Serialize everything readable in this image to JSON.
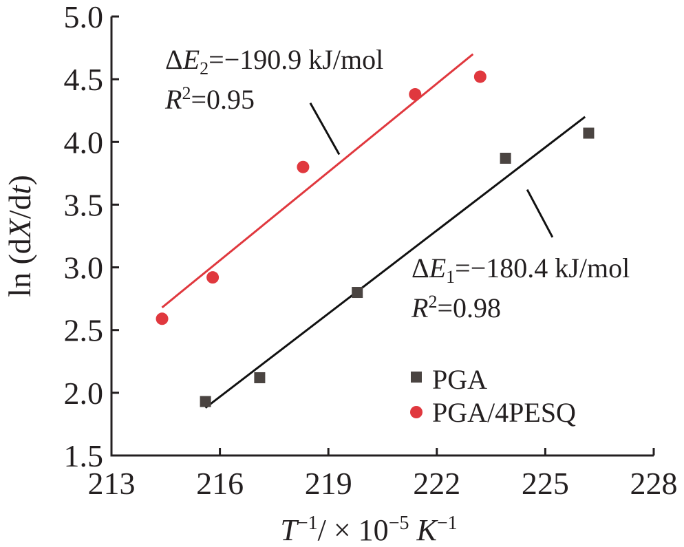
{
  "chart_data": {
    "type": "scatter",
    "xlabel_parts": [
      {
        "text": "T",
        "italic": true
      },
      {
        "text": "−1",
        "sup": true
      },
      {
        "text": "/ × 10"
      },
      {
        "text": "−5",
        "sup": true
      },
      {
        "text": " "
      },
      {
        "text": "K",
        "italic": true
      },
      {
        "text": "−1",
        "sup": true
      }
    ],
    "ylabel_parts": [
      {
        "text": "ln (d"
      },
      {
        "text": "X",
        "italic": true
      },
      {
        "text": "/d"
      },
      {
        "text": "t",
        "italic": true
      },
      {
        "text": ")"
      }
    ],
    "xlim": [
      213,
      228
    ],
    "ylim": [
      1.5,
      5.0
    ],
    "xticks": [
      "213",
      "216",
      "219",
      "222",
      "225",
      "228"
    ],
    "yticks": [
      "1.5",
      "2.0",
      "2.5",
      "3.0",
      "3.5",
      "4.0",
      "4.5",
      "5.0"
    ],
    "grid": false,
    "legend_position": "bottom-right",
    "series": [
      {
        "name": "PGA",
        "marker": "square",
        "color": "#4a4441",
        "line_color": "#111111",
        "x": [
          215.6,
          217.1,
          219.8,
          223.9,
          226.2
        ],
        "y": [
          1.93,
          2.12,
          2.8,
          3.87,
          4.07
        ],
        "fit": {
          "x": [
            215.6,
            226.1
          ],
          "y": [
            1.88,
            4.2
          ]
        }
      },
      {
        "name": "PGA/4PESQ",
        "marker": "circle",
        "color": "#e0383e",
        "line_color": "#e0383e",
        "x": [
          214.4,
          215.8,
          218.3,
          221.4,
          223.2
        ],
        "y": [
          2.59,
          2.92,
          3.8,
          4.38,
          4.52
        ],
        "fit": {
          "x": [
            214.4,
            223.0
          ],
          "y": [
            2.68,
            4.7
          ]
        }
      }
    ],
    "annotations": [
      {
        "line1": {
          "delta": "Δ",
          "var": "E",
          "sub": "2",
          "rest": "=−190.9 kJ/mol"
        },
        "line2": {
          "var": "R",
          "sup": "2",
          "rest": "=0.95"
        },
        "pointer": {
          "from": [
            218.5,
            4.31
          ],
          "to": [
            219.3,
            3.9
          ]
        }
      },
      {
        "line1": {
          "delta": "Δ",
          "var": "E",
          "sub": "1",
          "rest": "=−180.4 kJ/mol"
        },
        "line2": {
          "var": "R",
          "sup": "2",
          "rest": "=0.98"
        },
        "pointer": {
          "from": [
            224.5,
            3.62
          ],
          "to": [
            225.2,
            3.24
          ]
        }
      }
    ]
  }
}
